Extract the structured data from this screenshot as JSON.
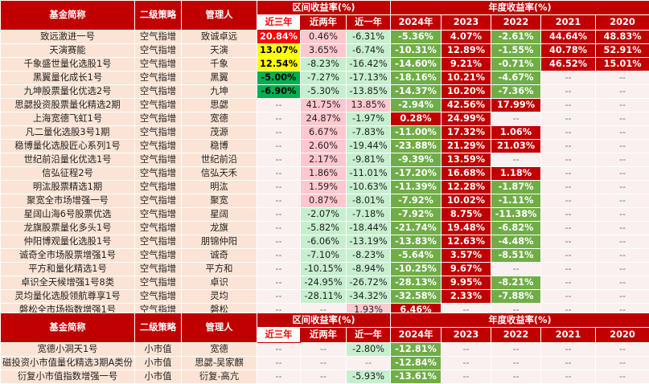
{
  "headers": {
    "fund_name": "基金简称",
    "strategy": "二级策略",
    "manager": "管理人",
    "interval_returns": "区间收益率(%)",
    "annual_returns": "年度收益率(%)",
    "recent3": "近三年",
    "recent2": "近两年",
    "recent1": "近一年",
    "y2024": "2024年",
    "y2023": "2023",
    "y2022": "2022",
    "y2021": "2021",
    "y2020": "2020"
  },
  "section1": [
    [
      "致远激进一号",
      "空气指增",
      "致诚卓远",
      "20.84%",
      "0.46%",
      "-6.31%",
      "-5.36%",
      "4.07%",
      "-2.61%",
      "44.64%",
      "48.83%"
    ],
    [
      "天演赛能",
      "空气指增",
      "天演",
      "13.07%",
      "3.65%",
      "-6.74%",
      "-10.31%",
      "12.89%",
      "-1.55%",
      "40.78%",
      "52.91%"
    ],
    [
      "千象盛世量化选股1号",
      "空气指增",
      "千象",
      "12.54%",
      "-8.23%",
      "-16.42%",
      "-14.60%",
      "9.21%",
      "-0.71%",
      "46.52%",
      "15.01%"
    ],
    [
      "黑翼量化成长1号",
      "空气指增",
      "黑翼",
      "-5.00%",
      "-7.27%",
      "-17.13%",
      "-18.16%",
      "10.21%",
      "-4.67%",
      "--",
      "--"
    ],
    [
      "九坤股票量化优选2号",
      "空气指增",
      "九坤",
      "-6.90%",
      "-5.30%",
      "-13.85%",
      "-14.37%",
      "10.20%",
      "-7.36%",
      "--",
      "--"
    ],
    [
      "思勰投资股票量化精选2期",
      "空气指增",
      "思勰",
      "--",
      "41.75%",
      "13.85%",
      "-2.94%",
      "42.56%",
      "17.99%",
      "--",
      "--"
    ],
    [
      "上海宽德飞虹1号",
      "空气指增",
      "宽德",
      "--",
      "24.87%",
      "-1.97%",
      "0.28%",
      "24.99%",
      "--",
      "--",
      "--"
    ],
    [
      "凡二量化选股3号1期",
      "空气指增",
      "茂源",
      "--",
      "6.67%",
      "-7.83%",
      "-11.00%",
      "17.32%",
      "1.06%",
      "--",
      "--"
    ],
    [
      "稳博量化选股匠心系列1号",
      "空气指增",
      "稳博",
      "--",
      "2.60%",
      "-19.44%",
      "-23.88%",
      "21.29%",
      "21.03%",
      "--",
      "--"
    ],
    [
      "世纪前沿量化优选1号",
      "空气指增",
      "世纪前沿",
      "--",
      "2.17%",
      "-9.81%",
      "-9.39%",
      "13.59%",
      "--",
      "--",
      "--"
    ],
    [
      "信弘征程2号",
      "空气指增",
      "信弘天禾",
      "--",
      "1.86%",
      "-11.01%",
      "-17.20%",
      "16.68%",
      "1.18%",
      "--",
      "--"
    ],
    [
      "明汯股票精选1期",
      "空气指增",
      "明汯",
      "--",
      "1.59%",
      "-10.63%",
      "-11.39%",
      "12.28%",
      "-1.87%",
      "--",
      "--"
    ],
    [
      "聚宽全市场增强一号",
      "空气指增",
      "聚宽",
      "--",
      "0.87%",
      "-8.01%",
      "-7.92%",
      "10.02%",
      "-1.11%",
      "--",
      "--"
    ],
    [
      "星阔山海6号股票优选",
      "空气指增",
      "星阔",
      "--",
      "-2.07%",
      "-7.18%",
      "-7.92%",
      "8.75%",
      "-11.38%",
      "--",
      "--"
    ],
    [
      "龙旗股票量化多头1号",
      "空气指增",
      "龙旗",
      "--",
      "-5.82%",
      "-18.44%",
      "-21.74%",
      "19.48%",
      "-6.82%",
      "--",
      "--"
    ],
    [
      "仲阳博观量化选股1号",
      "空气指增",
      "朋锦仲阳",
      "--",
      "-6.06%",
      "-13.19%",
      "-13.83%",
      "12.63%",
      "-4.48%",
      "--",
      "--"
    ],
    [
      "诚奇全市场股票增强1号",
      "空气指增",
      "诚奇",
      "--",
      "-7.10%",
      "-8.23%",
      "-5.64%",
      "3.57%",
      "-8.51%",
      "--",
      "--"
    ],
    [
      "平方和量化精选1号",
      "空气指增",
      "平方和",
      "--",
      "-10.15%",
      "-8.94%",
      "-10.25%",
      "9.67%",
      "--",
      "--",
      "--"
    ],
    [
      "卓识全天候增强1号8类",
      "空气指增",
      "卓识",
      "--",
      "-24.95%",
      "-26.72%",
      "-28.13%",
      "9.95%",
      "-8.21%",
      "--",
      "--"
    ],
    [
      "灵均量化选股领航尊享1号",
      "空气指增",
      "灵均",
      "--",
      "-28.11%",
      "-34.32%",
      "-32.58%",
      "2.33%",
      "-7.88%",
      "--",
      "--"
    ],
    [
      "磐松全市场指数增强1号",
      "空气指增",
      "磐松",
      "--",
      "--",
      "1.93%",
      "6.46%",
      "--",
      "--",
      "--",
      "--"
    ]
  ],
  "section2": [
    [
      "宽德小洞天1号",
      "小市值",
      "宽德",
      "--",
      "--",
      "-2.80%",
      "-12.81%",
      "--",
      "--",
      "--",
      "--"
    ],
    [
      "磁投资小市值量化精选3期A类份",
      "小市值",
      "思勰-吴家麒",
      "--",
      "--",
      "--",
      "-12.84%",
      "--",
      "--",
      "--",
      "--"
    ],
    [
      "衍复小市值指数增强一号",
      "小市值",
      "衍复-高亢",
      "--",
      "--",
      "-5.93%",
      "-13.61%",
      "--",
      "--",
      "--",
      "--"
    ]
  ]
}
